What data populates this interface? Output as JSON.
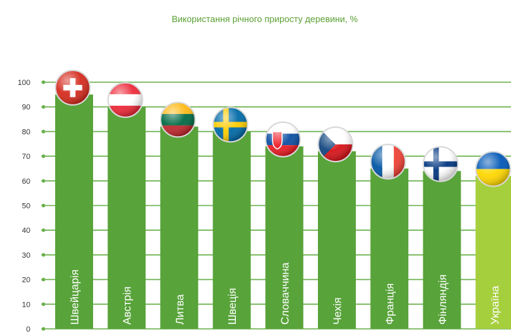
{
  "chart_data": {
    "type": "bar",
    "title": "Використання річного приросту деревини, %",
    "xlabel": "",
    "ylabel": "",
    "ylim": [
      0,
      100
    ],
    "yticks": [
      0,
      10,
      20,
      30,
      40,
      50,
      60,
      70,
      80,
      90,
      100
    ],
    "ytick_labels": [
      "0",
      "10",
      "20",
      "30",
      "40",
      "50",
      "60",
      "70",
      "80",
      "90",
      "100"
    ],
    "grid": true,
    "categories": [
      "Швейцарія",
      "Австрія",
      "Литва",
      "Швеція",
      "Словаччина",
      "Чехія",
      "Франція",
      "Фінляндія",
      "Україна"
    ],
    "values": [
      95,
      90,
      82,
      80,
      74,
      72,
      65,
      64,
      62
    ],
    "flags": [
      "switzerland-flag-icon",
      "austria-flag-icon",
      "lithuania-flag-icon",
      "sweden-flag-icon",
      "slovakia-flag-icon",
      "czechia-flag-icon",
      "france-flag-icon",
      "finland-flag-icon",
      "ukraine-flag-icon"
    ],
    "colors": {
      "bar": "#58a33a",
      "highlight_bar": "#a6cf3e",
      "grid": "#6ab04c",
      "title": "#5aa033"
    },
    "highlight_index": 8
  }
}
